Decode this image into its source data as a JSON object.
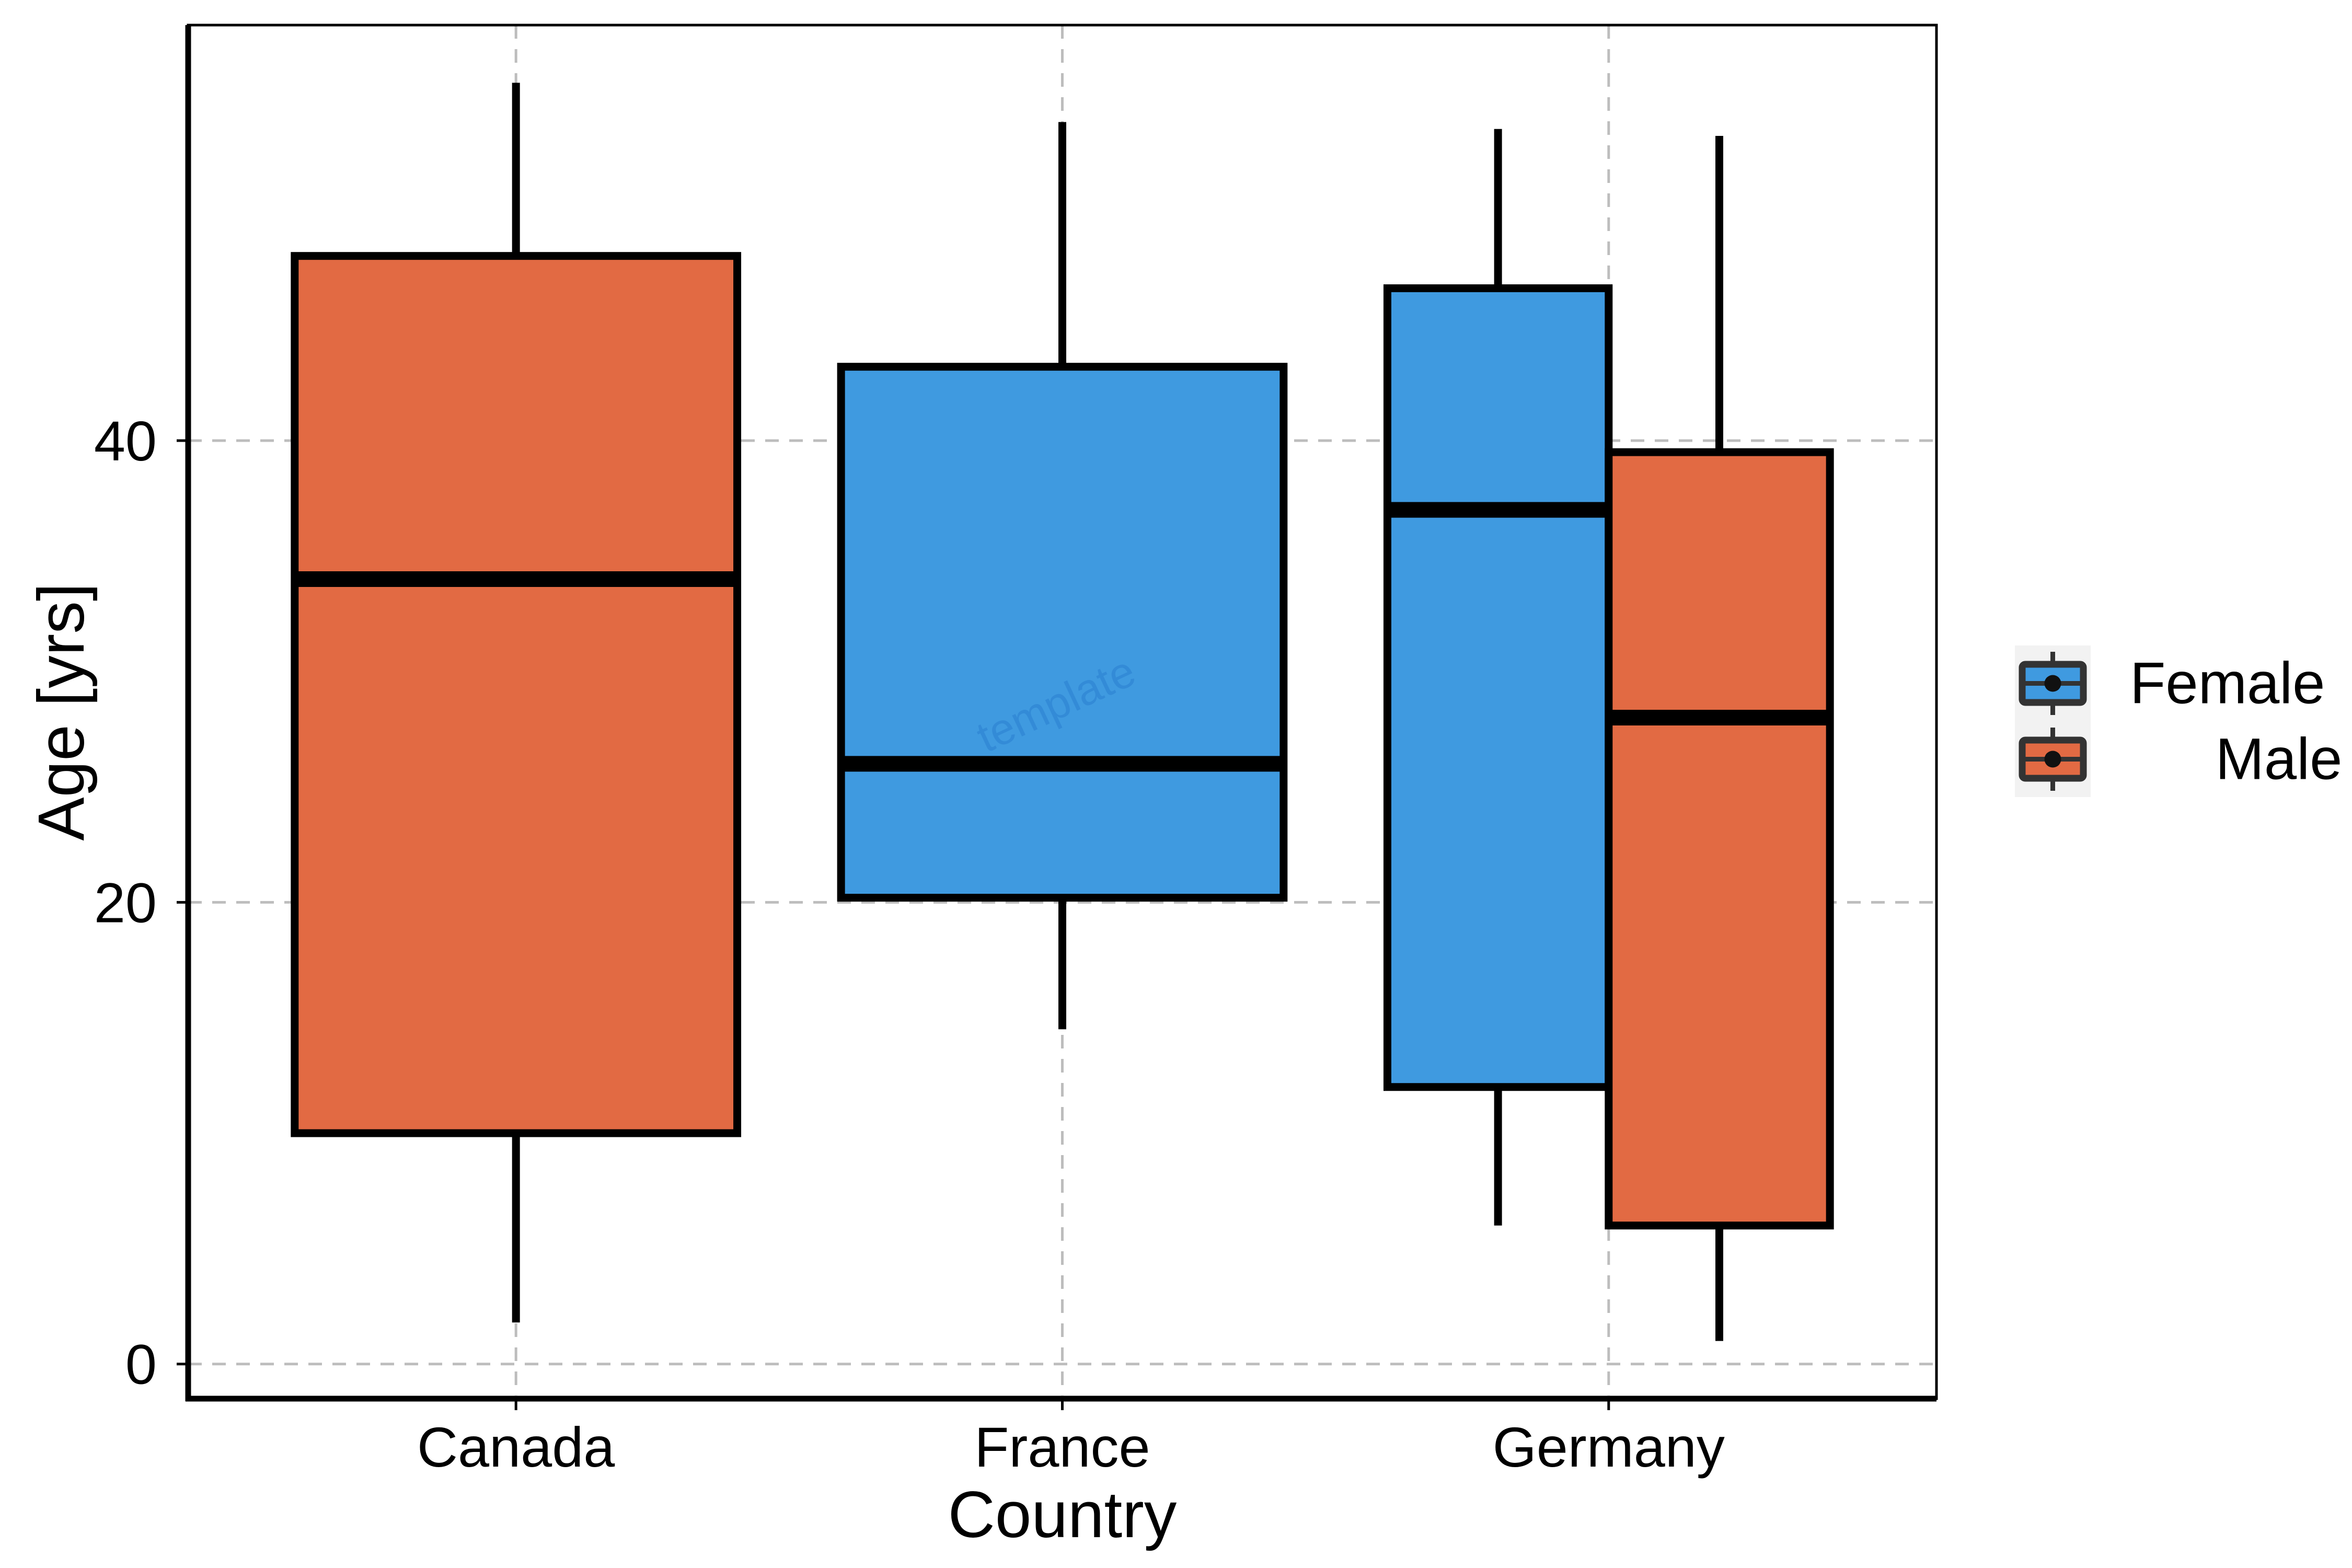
{
  "chart_data": {
    "type": "boxplot",
    "title": "",
    "xlabel": "Country",
    "ylabel": "Age [yrs]",
    "categories": [
      "Canada",
      "France",
      "Germany"
    ],
    "ylim": [
      -1.5,
      58
    ],
    "yticks": [
      0,
      20,
      40
    ],
    "grid": true,
    "legend_position": "right",
    "legend_order": [
      "Female",
      "Male"
    ],
    "colors": {
      "Female": "#3f9ae0",
      "Male": "#e26a43"
    },
    "boxes": [
      {
        "category": "Canada",
        "group": "Male",
        "min": 1.8,
        "q1": 10.0,
        "median": 34.0,
        "q3": 48.0,
        "max": 55.5
      },
      {
        "category": "France",
        "group": "Female",
        "min": 14.5,
        "q1": 20.2,
        "median": 26.0,
        "q3": 43.2,
        "max": 53.8
      },
      {
        "category": "Germany",
        "group": "Female",
        "min": 6.0,
        "q1": 12.0,
        "median": 37.0,
        "q3": 46.6,
        "max": 53.5
      },
      {
        "category": "Germany",
        "group": "Male",
        "min": 1.0,
        "q1": 6.0,
        "median": 28.0,
        "q3": 39.5,
        "max": 53.2
      }
    ],
    "watermark": "template"
  }
}
